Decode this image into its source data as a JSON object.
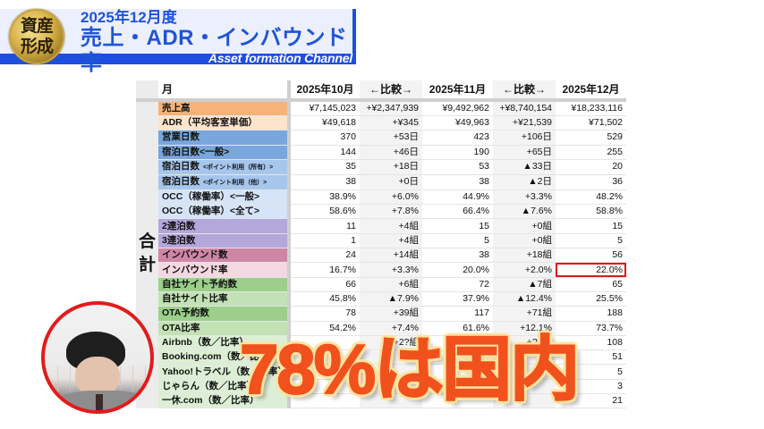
{
  "header": {
    "logo_text": "資産\n形成",
    "title_line1": "2025年12月度",
    "title_line2": "売上・ADR・インバウンド率",
    "channel": "Asset formation Channel",
    "accent_color": "#1e55d8"
  },
  "table": {
    "side_label": "合\n計",
    "columns": [
      "月",
      "2025年10月",
      "←比較→",
      "2025年11月",
      "←比較→",
      "2025年12月"
    ],
    "rows": [
      {
        "label": "売上高",
        "note": "",
        "color": "#f6b277",
        "values": [
          "¥7,145,023",
          "+¥2,347,939",
          "¥9,492,962",
          "+¥8,740,154",
          "¥18,233,116"
        ]
      },
      {
        "label": "ADR（平均客室単価）",
        "note": "",
        "color": "#fde4cd",
        "values": [
          "¥49,618",
          "+¥345",
          "¥49,963",
          "+¥21,539",
          "¥71,502"
        ]
      },
      {
        "label": "営業日数",
        "note": "",
        "color": "#79a6dc",
        "values": [
          "370",
          "+53日",
          "423",
          "+106日",
          "529"
        ]
      },
      {
        "label": "宿泊日数<一般>",
        "note": "",
        "color": "#79a6dc",
        "values": [
          "144",
          "+46日",
          "190",
          "+65日",
          "255"
        ]
      },
      {
        "label": "宿泊日数",
        "note": "<ポイント利用（所有）>",
        "color": "#a7c6ec",
        "values": [
          "35",
          "+18日",
          "53",
          "▲33日",
          "20"
        ]
      },
      {
        "label": "宿泊日数",
        "note": "<ポイント利用（他）>",
        "color": "#a7c6ec",
        "values": [
          "38",
          "+0日",
          "38",
          "▲2日",
          "36"
        ]
      },
      {
        "label": "OCC（稼働率）<一般>",
        "note": "",
        "color": "#d5e4f6",
        "values": [
          "38.9%",
          "+6.0%",
          "44.9%",
          "+3.3%",
          "48.2%"
        ]
      },
      {
        "label": "OCC（稼働率）<全て>",
        "note": "",
        "color": "#d5e4f6",
        "values": [
          "58.6%",
          "+7.8%",
          "66.4%",
          "▲7.6%",
          "58.8%"
        ]
      },
      {
        "label": "2連泊数",
        "note": "",
        "color": "#b4a7d9",
        "values": [
          "11",
          "+4組",
          "15",
          "+0組",
          "15"
        ]
      },
      {
        "label": "3連泊数",
        "note": "",
        "color": "#b4a7d9",
        "values": [
          "1",
          "+4組",
          "5",
          "+0組",
          "5"
        ]
      },
      {
        "label": "インバウンド数",
        "note": "",
        "color": "#cf86a6",
        "values": [
          "24",
          "+14組",
          "38",
          "+18組",
          "56"
        ]
      },
      {
        "label": "インバウンド率",
        "note": "",
        "color": "#f3d8e2",
        "values": [
          "16.7%",
          "+3.3%",
          "20.0%",
          "+2.0%",
          "22.0%"
        ],
        "highlight_last": true
      },
      {
        "label": "自社サイト予約数",
        "note": "",
        "color": "#9bcf8a",
        "values": [
          "66",
          "+6組",
          "72",
          "▲7組",
          "65"
        ]
      },
      {
        "label": "自社サイト比率",
        "note": "",
        "color": "#c2e2b5",
        "values": [
          "45.8%",
          "▲7.9%",
          "37.9%",
          "▲12.4%",
          "25.5%"
        ]
      },
      {
        "label": "OTA予約数",
        "note": "",
        "color": "#9bcf8a",
        "values": [
          "78",
          "+39組",
          "117",
          "+71組",
          "188"
        ]
      },
      {
        "label": "OTA比率",
        "note": "",
        "color": "#c2e2b5",
        "values": [
          "54.2%",
          "+7.4%",
          "61.6%",
          "+12.1%",
          "73.7%"
        ]
      },
      {
        "label": "Airbnb（数／比率）",
        "note": "",
        "color": "#dcefd5",
        "values": [
          "",
          "+2?組",
          "",
          "+?6組",
          "108"
        ]
      },
      {
        "label": "Booking.com（数／比率）",
        "note": "",
        "color": "#dcefd5",
        "values": [
          "",
          "",
          "",
          "",
          "51"
        ]
      },
      {
        "label": "Yahoo!トラベル（数／比率）",
        "note": "",
        "color": "#dcefd5",
        "values": [
          "",
          "",
          "",
          "",
          "5"
        ]
      },
      {
        "label": "じゃらん（数／比率）",
        "note": "",
        "color": "#dcefd5",
        "values": [
          "",
          "",
          "",
          "",
          "3"
        ]
      },
      {
        "label": "一休.com（数／比率）",
        "note": "",
        "color": "#dcefd5",
        "values": [
          "",
          "",
          "",
          "",
          "21"
        ]
      }
    ],
    "highlight_color": "#e01818"
  },
  "caption": {
    "text": "78%は国内",
    "color": "#f0511d",
    "outline_color": "#fde3a0"
  }
}
